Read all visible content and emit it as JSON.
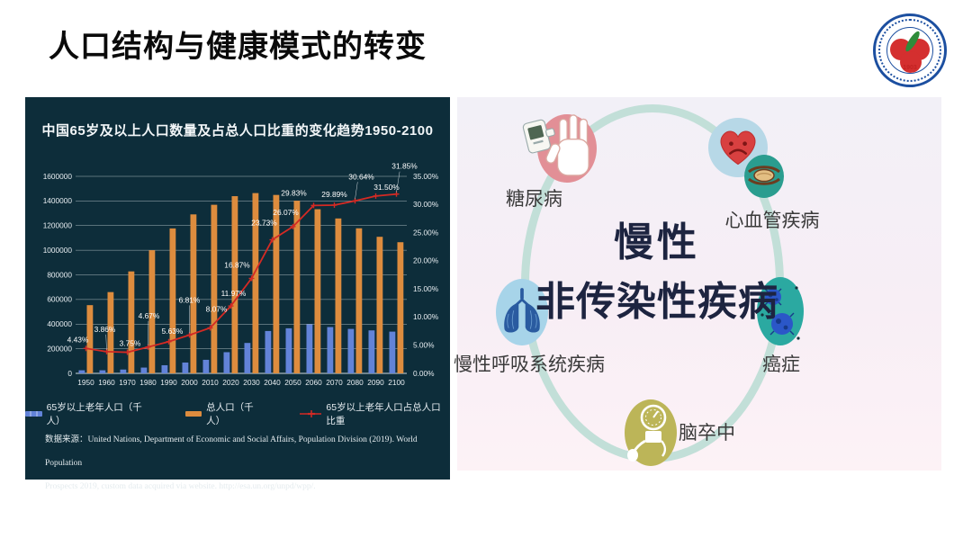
{
  "slide": {
    "title": "人口结构与健康模式的转变"
  },
  "logo": {
    "year": "1903"
  },
  "chart_data": {
    "type": "bar",
    "title": "中国65岁及以上人口数量及占总人口比重的变化趋势1950-2100",
    "categories": [
      "1950",
      "1960",
      "1970",
      "1980",
      "1990",
      "2000",
      "2010",
      "2020",
      "2030",
      "2040",
      "2050",
      "2060",
      "2070",
      "2080",
      "2090",
      "2100"
    ],
    "series": [
      {
        "name": "65岁以上老年人口（千人）",
        "type": "bar",
        "color": "#6283d8",
        "values": [
          25000,
          25000,
          31000,
          47000,
          66000,
          88000,
          110000,
          172000,
          247000,
          344000,
          366000,
          398000,
          376000,
          361000,
          349000,
          339000
        ]
      },
      {
        "name": "总人口（千人）",
        "type": "bar",
        "color": "#dd8c3e",
        "values": [
          554000,
          660000,
          828000,
          1000000,
          1177000,
          1291000,
          1369000,
          1439000,
          1464000,
          1449000,
          1402000,
          1333000,
          1258000,
          1178000,
          1109000,
          1065000
        ]
      },
      {
        "name": "65岁以上老年人口占总人口比重",
        "type": "line",
        "color": "#d42a24",
        "values": [
          4.43,
          3.86,
          3.75,
          4.67,
          5.63,
          6.81,
          8.07,
          11.97,
          16.87,
          23.73,
          26.07,
          29.83,
          29.89,
          30.64,
          31.5,
          31.85
        ],
        "labels": [
          "4.43%",
          "3.86%",
          "3.75%",
          "4.67%",
          "5.63%",
          "6.81%",
          "8.07%",
          "11.97%",
          "16.87%",
          "23.73%",
          "26.07%",
          "29.83%",
          "29.89%",
          "30.64%",
          "31.50%",
          "31.85%"
        ]
      }
    ],
    "left_axis": {
      "ticks": [
        "0",
        "200000",
        "400000",
        "600000",
        "800000",
        "1000000",
        "1200000",
        "1400000",
        "1600000"
      ],
      "max": 1600000
    },
    "right_axis": {
      "ticks": [
        "0.00%",
        "5.00%",
        "10.00%",
        "15.00%",
        "20.00%",
        "25.00%",
        "30.00%",
        "35.00%"
      ],
      "max": 35
    },
    "legend_position": "bottom",
    "grid": true,
    "source_line1": "数据来源：United Nations, Department of Economic and Social Affairs, Population Division (2019). World Population",
    "source_line2": "Prospects 2019, custom data acquired via website. http://esa.un.org/unpd/wpp/."
  },
  "diagram": {
    "center_line1": "慢性",
    "center_line2": "非传染性疾病",
    "nodes": [
      {
        "id": "diabetes",
        "label": "糖尿病"
      },
      {
        "id": "cardiovascular",
        "label": "心血管疾病"
      },
      {
        "id": "respiratory",
        "label": "慢性呼吸系统疾病"
      },
      {
        "id": "cancer",
        "label": "癌症"
      },
      {
        "id": "stroke",
        "label": "脑卒中"
      }
    ],
    "colors": {
      "ring": "#c2dfd8",
      "diabetes": "#e28f96",
      "heart_bg": "#b7d8e7",
      "vessel": "#2a9d8f",
      "lungs": "#a7d4e9",
      "cancer": "#2ba9a1",
      "stroke": "#bcb558"
    }
  }
}
